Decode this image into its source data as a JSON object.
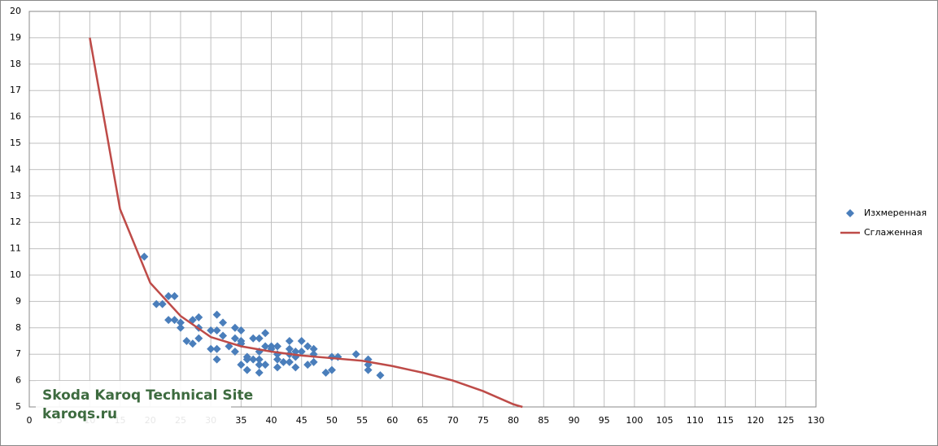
{
  "chart_data": {
    "type": "scatter",
    "series": [
      {
        "name": "Изхмеренная",
        "type": "scatter",
        "color": "#4a7ebb",
        "x": [
          19,
          21,
          22,
          23,
          24,
          23,
          24,
          25,
          25,
          26,
          27,
          27,
          28,
          28,
          28,
          30,
          30,
          31,
          31,
          31,
          31,
          32,
          32,
          33,
          34,
          34,
          34,
          35,
          35,
          35,
          35,
          36,
          36,
          36,
          37,
          37,
          38,
          38,
          38,
          38,
          38,
          39,
          39,
          39,
          40,
          40,
          41,
          41,
          41,
          41,
          42,
          43,
          43,
          43,
          43,
          44,
          44,
          44,
          45,
          45,
          46,
          46,
          47,
          47,
          47,
          49,
          50,
          50,
          51,
          54,
          56,
          56,
          56,
          58
        ],
        "values": [
          10.7,
          8.9,
          8.9,
          9.2,
          9.2,
          8.3,
          8.3,
          8.2,
          8.0,
          7.5,
          8.3,
          7.4,
          8.4,
          8.0,
          7.6,
          7.9,
          7.2,
          8.5,
          7.9,
          7.2,
          6.8,
          8.2,
          7.7,
          7.3,
          8.0,
          7.6,
          7.1,
          7.9,
          7.5,
          7.4,
          6.6,
          6.9,
          6.8,
          6.4,
          6.8,
          7.6,
          7.6,
          7.1,
          6.8,
          6.6,
          6.3,
          7.3,
          7.8,
          6.6,
          7.3,
          7.2,
          7.3,
          7.0,
          6.8,
          6.5,
          6.7,
          7.5,
          7.2,
          7.0,
          6.7,
          7.1,
          6.9,
          6.5,
          7.5,
          7.1,
          7.3,
          6.6,
          7.2,
          7.0,
          6.7,
          6.3,
          6.4,
          6.9,
          6.9,
          7.0,
          6.8,
          6.6,
          6.4,
          6.2
        ]
      },
      {
        "name": "Сглаженная",
        "type": "line",
        "color": "#be4b48",
        "x": [
          10,
          15,
          20,
          25,
          30,
          35,
          40,
          45,
          50,
          55,
          60,
          65,
          70,
          75,
          80,
          81.5
        ],
        "values": [
          19,
          12.5,
          9.7,
          8.45,
          7.65,
          7.3,
          7.1,
          6.95,
          6.85,
          6.75,
          6.55,
          6.3,
          6.0,
          5.6,
          5.1,
          5.0
        ]
      }
    ],
    "xlim": [
      0,
      130
    ],
    "xticks": [
      0,
      5,
      10,
      15,
      20,
      25,
      30,
      35,
      40,
      45,
      50,
      55,
      60,
      65,
      70,
      75,
      80,
      85,
      90,
      95,
      100,
      105,
      110,
      115,
      120,
      125,
      130
    ],
    "ylim": [
      5,
      20
    ],
    "yticks": [
      5,
      6,
      7,
      8,
      9,
      10,
      11,
      12,
      13,
      14,
      15,
      16,
      17,
      18,
      19,
      20
    ],
    "grid": true,
    "legend": "right",
    "watermark": [
      "Skoda Karoq Technical Site",
      "karoqs.ru"
    ]
  }
}
